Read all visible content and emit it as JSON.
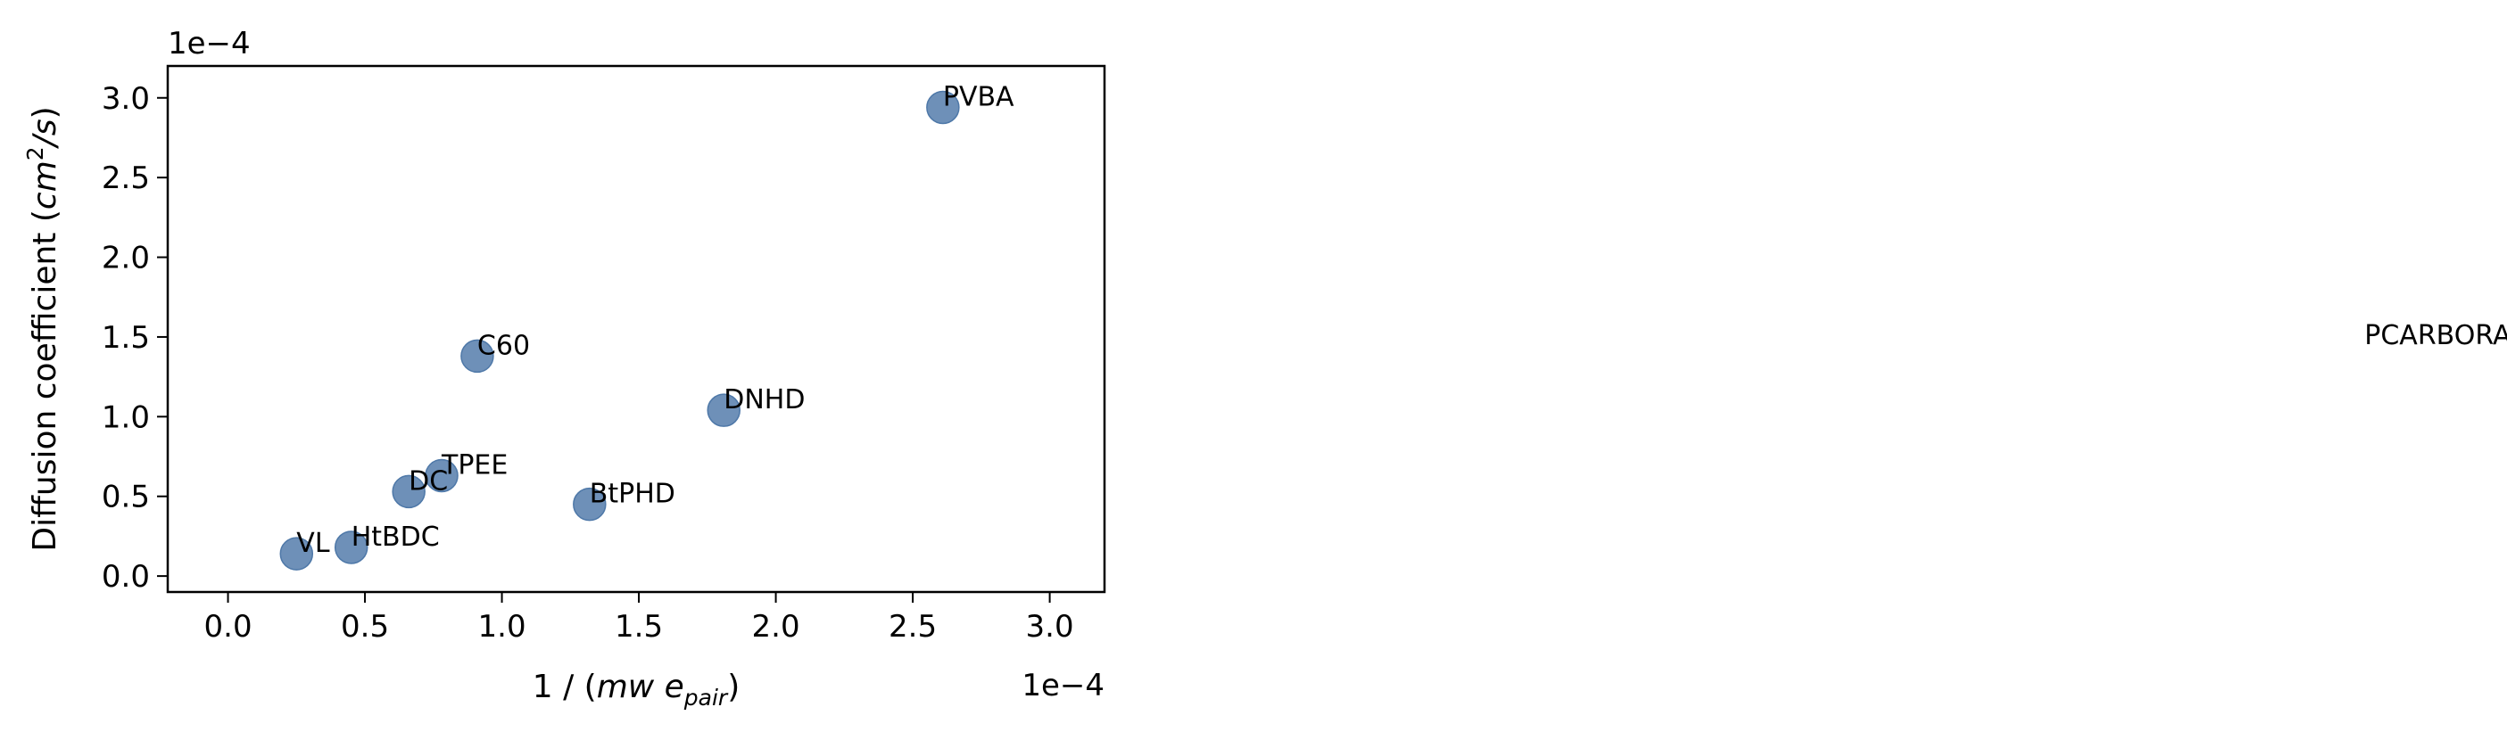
{
  "chart_data": {
    "type": "scatter",
    "title": "",
    "xlabel": "1 / (mw e_pair)",
    "xlabel_parts": {
      "prefix": "1 / (",
      "main": "mw e",
      "sub": "pair",
      "suffix": ")"
    },
    "ylabel": "Diffusion coefficient (cm^2/s)",
    "ylabel_parts": {
      "prefix": "Diffusion coefficient (",
      "main": "cm",
      "sup": "2",
      "after": "/s",
      "suffix": ")"
    },
    "x_offset_label": "1e−4",
    "y_offset_label": "1e−4",
    "xlim": [
      -0.22,
      3.2
    ],
    "ylim": [
      -0.1,
      3.2
    ],
    "xticks": [
      0.0,
      0.5,
      1.0,
      1.5,
      2.0,
      2.5,
      3.0
    ],
    "xtick_labels": [
      "0.0",
      "0.5",
      "1.0",
      "1.5",
      "2.0",
      "2.5",
      "3.0"
    ],
    "yticks": [
      0.0,
      0.5,
      1.0,
      1.5,
      2.0,
      2.5,
      3.0
    ],
    "ytick_labels": [
      "0.0",
      "0.5",
      "1.0",
      "1.5",
      "2.0",
      "2.5",
      "3.0"
    ],
    "grid": false,
    "marker_color": "#4e78a8",
    "points": [
      {
        "label": "VL",
        "x": 0.25,
        "y": 0.14
      },
      {
        "label": "HtBDC",
        "x": 0.45,
        "y": 0.18
      },
      {
        "label": "DC",
        "x": 0.66,
        "y": 0.53
      },
      {
        "label": "TPEE",
        "x": 0.78,
        "y": 0.63
      },
      {
        "label": "C60",
        "x": 0.91,
        "y": 1.38
      },
      {
        "label": "BtPHD",
        "x": 1.32,
        "y": 0.45
      },
      {
        "label": "DNHD",
        "x": 1.81,
        "y": 1.04
      },
      {
        "label": "PVBA",
        "x": 2.61,
        "y": 2.94
      }
    ],
    "annotations": [
      {
        "text": "PCARBORANE",
        "x": 7.8,
        "y": 1.6
      }
    ]
  }
}
